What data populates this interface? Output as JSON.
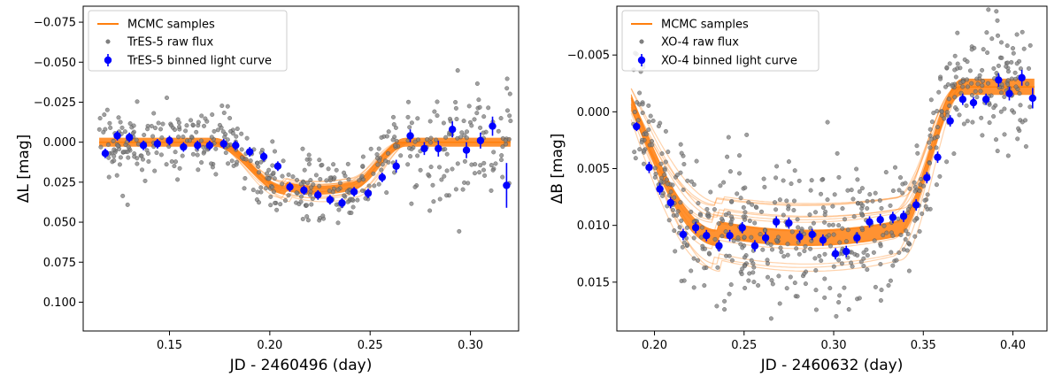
{
  "chart_data": [
    {
      "type": "scatter",
      "xlabel": "JD - 2460496 (day)",
      "ylabel": "ΔL [mag]",
      "xlim": [
        0.107,
        0.324
      ],
      "ylim": [
        0.118,
        -0.085
      ],
      "y_inverted": true,
      "xticks": [
        0.15,
        0.2,
        0.25,
        0.3
      ],
      "xtick_labels": [
        "0.15",
        "0.20",
        "0.25",
        "0.30"
      ],
      "yticks": [
        -0.075,
        -0.05,
        -0.025,
        0.0,
        0.025,
        0.05,
        0.075,
        0.1
      ],
      "ytick_labels": [
        "−0.075",
        "−0.050",
        "−0.025",
        "0.000",
        "0.025",
        "0.050",
        "0.075",
        "0.100"
      ],
      "legend": {
        "position": "top-left",
        "entries": [
          "MCMC samples",
          "TrES-5 raw flux",
          "TrES-5 binned light curve"
        ]
      },
      "model": {
        "name": "MCMC samples",
        "color": "#ff7f0e",
        "baseline": 0.0,
        "depth": 0.03,
        "t1": 0.172,
        "t2": 0.208,
        "t3": 0.24,
        "t4": 0.268,
        "x_start": 0.115,
        "x_end": 0.32
      },
      "raw_flux": {
        "name": "TrES-5 raw flux",
        "color": "#808080",
        "scatter_sigma": 0.011
      },
      "binned": {
        "name": "TrES-5 binned light curve",
        "color": "#0000ff",
        "x": [
          0.118,
          0.124,
          0.13,
          0.137,
          0.144,
          0.15,
          0.157,
          0.164,
          0.17,
          0.177,
          0.183,
          0.19,
          0.197,
          0.204,
          0.21,
          0.217,
          0.224,
          0.23,
          0.236,
          0.242,
          0.249,
          0.256,
          0.263,
          0.27,
          0.277,
          0.284,
          0.291,
          0.298,
          0.305,
          0.311,
          0.318
        ],
        "y": [
          0.007,
          -0.004,
          -0.003,
          0.002,
          0.001,
          -0.001,
          0.003,
          0.002,
          0.002,
          0.001,
          0.002,
          0.006,
          0.009,
          0.015,
          0.028,
          0.03,
          0.033,
          0.036,
          0.038,
          0.031,
          0.032,
          0.022,
          0.015,
          -0.004,
          0.004,
          0.004,
          -0.008,
          0.005,
          -0.001,
          -0.01,
          0.027
        ],
        "err": [
          0.003,
          0.003,
          0.003,
          0.003,
          0.003,
          0.003,
          0.003,
          0.003,
          0.003,
          0.003,
          0.003,
          0.003,
          0.003,
          0.003,
          0.003,
          0.003,
          0.003,
          0.003,
          0.003,
          0.003,
          0.003,
          0.003,
          0.004,
          0.004,
          0.004,
          0.005,
          0.005,
          0.005,
          0.005,
          0.006,
          0.014
        ]
      }
    },
    {
      "type": "scatter",
      "xlabel": "JD - 2460632 (day)",
      "ylabel": "ΔB [mag]",
      "xlim": [
        0.179,
        0.419
      ],
      "ylim": [
        0.0193,
        -0.0093
      ],
      "y_inverted": true,
      "xticks": [
        0.2,
        0.25,
        0.3,
        0.35,
        0.4
      ],
      "xtick_labels": [
        "0.20",
        "0.25",
        "0.30",
        "0.35",
        "0.40"
      ],
      "yticks": [
        -0.005,
        0.0,
        0.005,
        0.01,
        0.015
      ],
      "ytick_labels": [
        "−0.005",
        "0.000",
        "0.005",
        "0.010",
        "0.015"
      ],
      "legend": {
        "position": "top-left",
        "entries": [
          "MCMC samples",
          "XO-4 raw flux",
          "XO-4 binned light curve"
        ]
      },
      "model": {
        "name": "MCMC samples",
        "color": "#ff7f0e",
        "baseline": -0.0022,
        "depth": 0.0133,
        "t2": 0.235,
        "t3": 0.335,
        "t4": 0.372,
        "x_start": 0.187,
        "x_end": 0.412
      },
      "raw_flux": {
        "name": "XO-4 raw flux",
        "color": "#808080",
        "scatter_sigma": 0.0026
      },
      "binned": {
        "name": "XO-4 binned light curve",
        "color": "#0000ff",
        "x": [
          0.19,
          0.197,
          0.203,
          0.209,
          0.216,
          0.223,
          0.229,
          0.236,
          0.242,
          0.249,
          0.256,
          0.262,
          0.268,
          0.275,
          0.281,
          0.288,
          0.294,
          0.301,
          0.307,
          0.313,
          0.32,
          0.326,
          0.333,
          0.339,
          0.346,
          0.352,
          0.358,
          0.365,
          0.372,
          0.378,
          0.385,
          0.392,
          0.398,
          0.405,
          0.411
        ],
        "y": [
          0.0013,
          0.0049,
          0.0068,
          0.008,
          0.0108,
          0.0102,
          0.0109,
          0.0118,
          0.0109,
          0.0102,
          0.0118,
          0.0111,
          0.0097,
          0.0098,
          0.011,
          0.0108,
          0.0113,
          0.0125,
          0.0123,
          0.0111,
          0.0097,
          0.0095,
          0.0093,
          0.0092,
          0.0082,
          0.0058,
          0.004,
          0.0008,
          -0.0011,
          -0.0008,
          -0.0011,
          -0.0028,
          -0.0016,
          -0.003,
          -0.0012
        ],
        "err": [
          0.0004,
          0.0005,
          0.0005,
          0.0005,
          0.0005,
          0.0005,
          0.0005,
          0.0005,
          0.0005,
          0.0005,
          0.0005,
          0.0005,
          0.0005,
          0.0005,
          0.0005,
          0.0005,
          0.0005,
          0.0005,
          0.0005,
          0.0005,
          0.0005,
          0.0005,
          0.0005,
          0.0005,
          0.0005,
          0.0005,
          0.0005,
          0.0005,
          0.0005,
          0.0005,
          0.0005,
          0.0006,
          0.0006,
          0.0007,
          0.0009
        ]
      }
    }
  ]
}
